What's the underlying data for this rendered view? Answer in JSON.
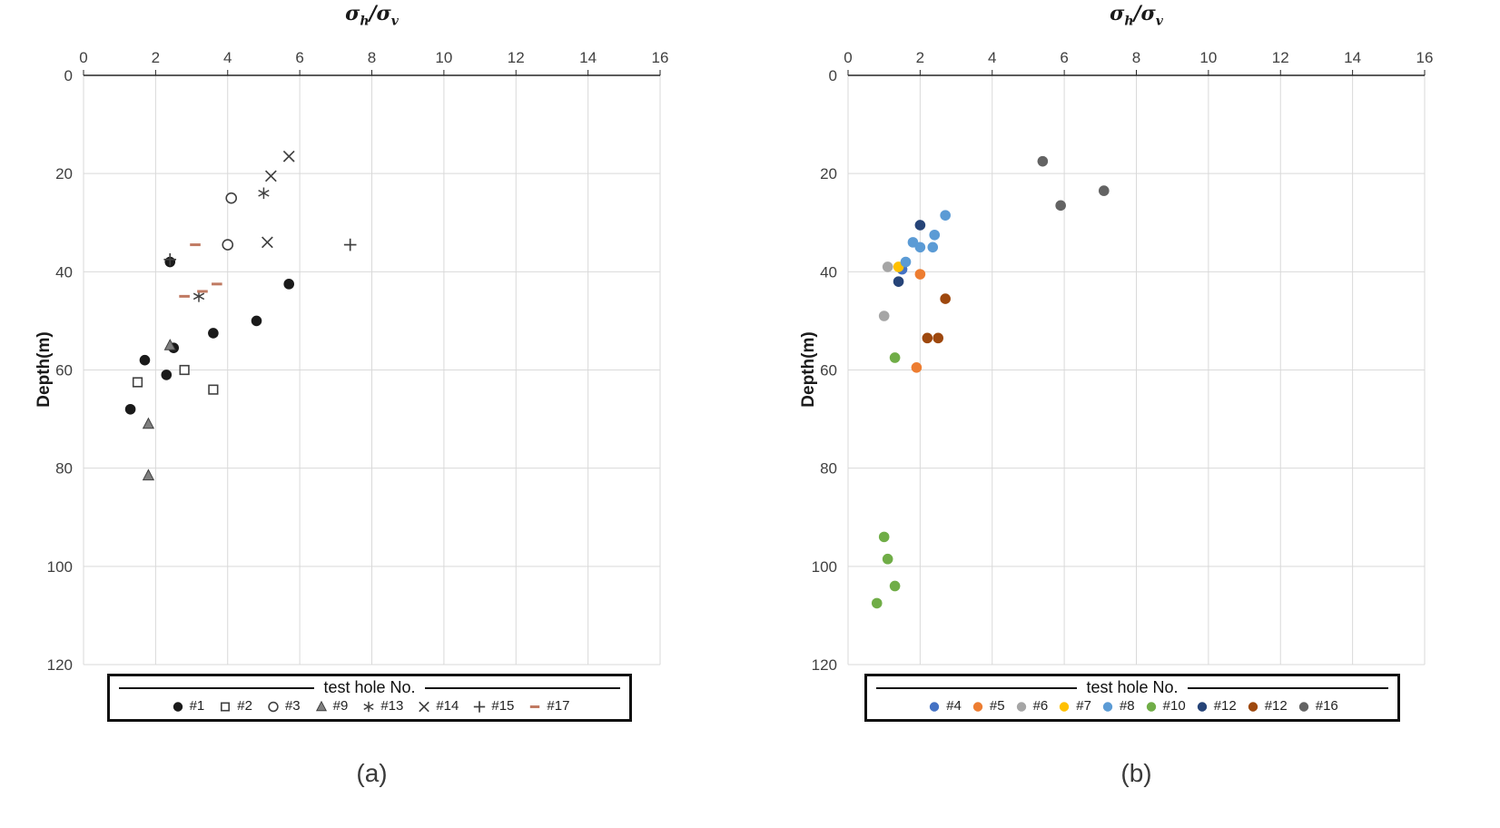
{
  "figure": {
    "captions": [
      "(a)",
      "(b)"
    ]
  },
  "chart_data": [
    {
      "type": "scatter",
      "panel": "a",
      "xlabel": "σh/σv",
      "xlabel_parts": {
        "sigma1": "σ",
        "sub1": "h",
        "slash": "/",
        "sigma2": "σ",
        "sub2": "v"
      },
      "ylabel": "Depth(m)",
      "xlim": [
        0,
        16
      ],
      "ylim": [
        0,
        120
      ],
      "x_ticks": [
        0,
        2,
        4,
        6,
        8,
        10,
        12,
        14,
        16
      ],
      "y_ticks": [
        0,
        20,
        40,
        60,
        80,
        100,
        120
      ],
      "y_inverted": true,
      "x_axis_position": "top",
      "grid": true,
      "grid_color": "#d9d9d9",
      "legend_title": "test hole No.",
      "legend_position": "bottom",
      "series": [
        {
          "name": "#1",
          "marker": "filled-circle",
          "color": "#1a1a1a",
          "points": [
            [
              2.4,
              38
            ],
            [
              5.7,
              42.5
            ],
            [
              4.8,
              50
            ],
            [
              3.6,
              52.5
            ],
            [
              2.5,
              55.5
            ],
            [
              1.7,
              58
            ],
            [
              2.3,
              61
            ],
            [
              1.3,
              68
            ]
          ]
        },
        {
          "name": "#2",
          "marker": "open-square",
          "color": "#404040",
          "points": [
            [
              1.5,
              62.5
            ],
            [
              2.8,
              60
            ],
            [
              3.6,
              64
            ]
          ]
        },
        {
          "name": "#3",
          "marker": "open-circle",
          "color": "#404040",
          "points": [
            [
              4.1,
              25
            ],
            [
              4.0,
              34.5
            ]
          ]
        },
        {
          "name": "#9",
          "marker": "filled-triangle",
          "color": "#7f7f7f",
          "points": [
            [
              2.4,
              55
            ],
            [
              1.8,
              71
            ],
            [
              1.8,
              81.5
            ]
          ]
        },
        {
          "name": "#13",
          "marker": "asterisk",
          "color": "#404040",
          "points": [
            [
              5.0,
              24
            ],
            [
              3.2,
              45
            ]
          ]
        },
        {
          "name": "#14",
          "marker": "x-cross",
          "color": "#404040",
          "points": [
            [
              5.7,
              16.5
            ],
            [
              5.2,
              20.5
            ],
            [
              5.1,
              34
            ]
          ]
        },
        {
          "name": "#15",
          "marker": "plus",
          "color": "#404040",
          "points": [
            [
              2.4,
              37.5
            ],
            [
              7.4,
              34.5
            ]
          ]
        },
        {
          "name": "#17",
          "marker": "dash",
          "color": "#c07a62",
          "points": [
            [
              3.1,
              34.5
            ],
            [
              3.7,
              42.5
            ],
            [
              3.3,
              44
            ],
            [
              2.8,
              45
            ]
          ]
        }
      ]
    },
    {
      "type": "scatter",
      "panel": "b",
      "xlabel": "σh/σv",
      "xlabel_parts": {
        "sigma1": "σ",
        "sub1": "h",
        "slash": "/",
        "sigma2": "σ",
        "sub2": "v"
      },
      "ylabel": "Depth(m)",
      "xlim": [
        0,
        16
      ],
      "ylim": [
        0,
        120
      ],
      "x_ticks": [
        0,
        2,
        4,
        6,
        8,
        10,
        12,
        14,
        16
      ],
      "y_ticks": [
        0,
        20,
        40,
        60,
        80,
        100,
        120
      ],
      "y_inverted": true,
      "x_axis_position": "top",
      "grid": true,
      "grid_color": "#d9d9d9",
      "legend_title": "test hole No.",
      "legend_position": "bottom",
      "series": [
        {
          "name": "#4",
          "marker": "filled-circle",
          "color": "#4472C4",
          "points": [
            [
              1.5,
              39.5
            ]
          ]
        },
        {
          "name": "#5",
          "marker": "filled-circle",
          "color": "#ED7D31",
          "points": [
            [
              2.0,
              40.5
            ],
            [
              1.9,
              59.5
            ]
          ]
        },
        {
          "name": "#6",
          "marker": "filled-circle",
          "color": "#A5A5A5",
          "points": [
            [
              1.1,
              39
            ],
            [
              1.0,
              49
            ]
          ]
        },
        {
          "name": "#7",
          "marker": "filled-circle",
          "color": "#FFC000",
          "points": [
            [
              1.4,
              39
            ]
          ]
        },
        {
          "name": "#8",
          "marker": "filled-circle",
          "color": "#5B9BD5",
          "points": [
            [
              2.7,
              28.5
            ],
            [
              2.4,
              32.5
            ],
            [
              1.8,
              34
            ],
            [
              2.0,
              35
            ],
            [
              2.35,
              35
            ],
            [
              1.6,
              38
            ]
          ]
        },
        {
          "name": "#10",
          "marker": "filled-circle",
          "color": "#70AD47",
          "points": [
            [
              1.3,
              57.5
            ],
            [
              1.0,
              94
            ],
            [
              1.1,
              98.5
            ],
            [
              1.3,
              104
            ],
            [
              0.8,
              107.5
            ]
          ]
        },
        {
          "name": "#12",
          "marker": "filled-circle",
          "color": "#264478",
          "points": [
            [
              2.0,
              30.5
            ],
            [
              1.4,
              42
            ]
          ]
        },
        {
          "name": "#12",
          "marker": "filled-circle",
          "color": "#9E480E",
          "points": [
            [
              2.7,
              45.5
            ],
            [
              2.2,
              53.5
            ],
            [
              2.5,
              53.5
            ]
          ]
        },
        {
          "name": "#16",
          "marker": "filled-circle",
          "color": "#636363",
          "points": [
            [
              5.4,
              17.5
            ],
            [
              7.1,
              23.5
            ],
            [
              5.9,
              26.5
            ]
          ]
        }
      ]
    }
  ]
}
